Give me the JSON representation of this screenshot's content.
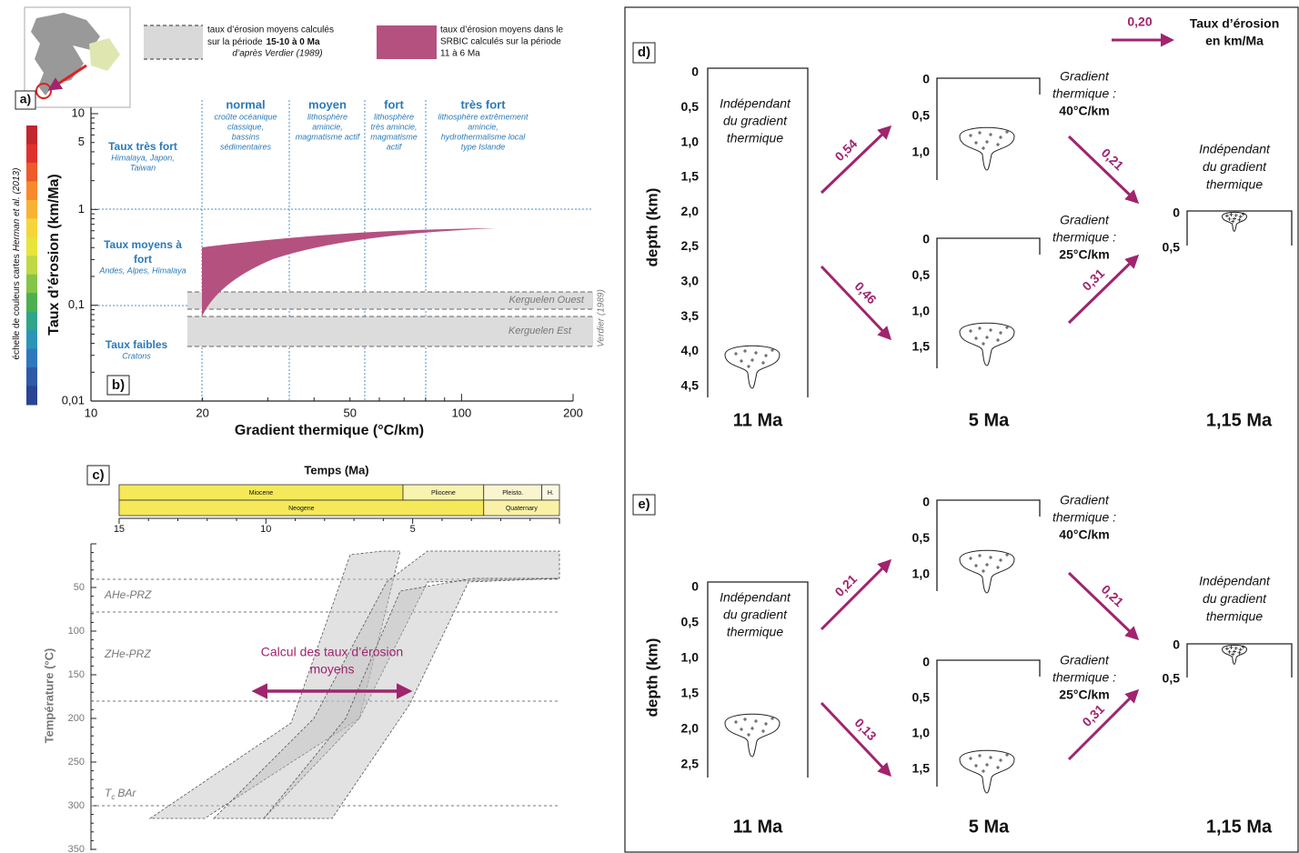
{
  "legend": {
    "gray": {
      "line1": "taux d’érosion moyens calculés",
      "line2": "sur la période",
      "line2_bold": "15-10 à 0 Ma",
      "line3": "d’après Verdier (1989)"
    },
    "pink": [
      "taux d’érosion moyens dans le",
      "SRBIC calculés sur la période",
      "11 à 6 Ma"
    ]
  },
  "panel_a": {
    "label": "a)"
  },
  "color_scale": {
    "label": "échelle de couleurs cartes",
    "label_italic": "Herman et al. (2013)"
  },
  "panel_b": {
    "label": "b)",
    "y_axis_title": "Taux d’érosion (km/Ma)",
    "x_axis_title": "Gradient thermique (°C/km)",
    "x_ticks": [
      "10",
      "20",
      "50",
      "100",
      "200"
    ],
    "y_ticks": [
      "10",
      "5",
      "1",
      "0,1",
      "0,01"
    ],
    "columns": [
      {
        "title": "normal",
        "desc": [
          "croûte océanique",
          "classique,",
          "bassins",
          "sédimentaires"
        ]
      },
      {
        "title": "moyen",
        "desc": [
          "lithosphère",
          "amincie,",
          "magmatisme actif"
        ]
      },
      {
        "title": "fort",
        "desc": [
          "lithosphère",
          "très amincie,",
          "magmatisme",
          "actif"
        ]
      },
      {
        "title": "très fort",
        "desc": [
          "lithosphère extrêmement",
          "amincie,",
          "hydrothermalisme local",
          "type Islande"
        ]
      }
    ],
    "rate_classes": [
      {
        "title": [
          "Taux très fort"
        ],
        "desc": [
          "Himalaya, Japon,",
          "Taiwan"
        ]
      },
      {
        "title": [
          "Taux moyens à",
          "fort"
        ],
        "desc": [
          "Andes, Alpes, Himalaya"
        ]
      },
      {
        "title": [
          "Taux faibles"
        ],
        "desc": [
          "Cratons"
        ]
      }
    ],
    "bands": [
      "Kerguelen Ouest",
      "Kerguelen Est"
    ],
    "source": "Verdier (1989)"
  },
  "panel_c": {
    "label": "c)",
    "title": "Temps (Ma)",
    "epochs": [
      "Miocene",
      "Pliocene",
      "Pleisto.",
      "H."
    ],
    "periods": [
      "Neogene",
      "Quaternary"
    ],
    "x_ticks": [
      "15",
      "10",
      "5"
    ],
    "y_ticks": [
      "50",
      "100",
      "150",
      "200",
      "250",
      "300",
      "350"
    ],
    "y_axis_title": "Température (°C)",
    "zones": [
      "AHe-PRZ",
      "ZHe-PRZ"
    ],
    "tc": {
      "main": "T",
      "sub": "c",
      "rest": "BAr"
    },
    "arrow_label": [
      "Calcul des taux d’érosion",
      "moyens"
    ]
  },
  "key": {
    "rate": "0,20",
    "title": [
      "Taux d’érosion",
      "en km/Ma"
    ]
  },
  "panel_d": {
    "label": "d)",
    "y_axis_title": "depth (km)",
    "start": {
      "ticks": [
        "0",
        "0,5",
        "1,0",
        "1,5",
        "2,0",
        "2,5",
        "3,0",
        "3,5",
        "4,0",
        "4,5"
      ],
      "text": [
        "Indépendant",
        "du gradient",
        "thermique"
      ],
      "time": "11 Ma"
    },
    "upper": {
      "ticks": [
        "0",
        "0,5",
        "1,0"
      ],
      "gradient": [
        "Gradient",
        "thermique :",
        "40°C/km"
      ]
    },
    "lower": {
      "ticks": [
        "0",
        "0,5",
        "1,0",
        "1,5"
      ],
      "gradient": [
        "Gradient",
        "thermique :",
        "25°C/km"
      ]
    },
    "middle_time": "5 Ma",
    "end": {
      "ticks": [
        "0",
        "0,5"
      ],
      "text": [
        "Indépendant",
        "du gradient",
        "thermique"
      ],
      "time": "1,15 Ma"
    },
    "rates": [
      "0,54",
      "0,46",
      "0,21",
      "0,31"
    ]
  },
  "panel_e": {
    "label": "e)",
    "y_axis_title": "depth (km)",
    "start": {
      "ticks": [
        "0",
        "0,5",
        "1,0",
        "1,5",
        "2,0",
        "2,5"
      ],
      "text": [
        "Indépendant",
        "du gradient",
        "thermique"
      ],
      "time": "11 Ma"
    },
    "upper": {
      "ticks": [
        "0",
        "0,5",
        "1,0"
      ],
      "gradient": [
        "Gradient",
        "thermique :",
        "40°C/km"
      ]
    },
    "lower": {
      "ticks": [
        "0",
        "0,5",
        "1,0",
        "1,5"
      ],
      "gradient": [
        "Gradient",
        "thermique :",
        "25°C/km"
      ]
    },
    "middle_time": "5 Ma",
    "end": {
      "ticks": [
        "0",
        "0,5"
      ],
      "text": [
        "Indépendant",
        "du gradient",
        "thermique"
      ],
      "time": "1,15 Ma"
    },
    "rates": [
      "0,21",
      "0,13",
      "0,21",
      "0,31"
    ]
  }
}
